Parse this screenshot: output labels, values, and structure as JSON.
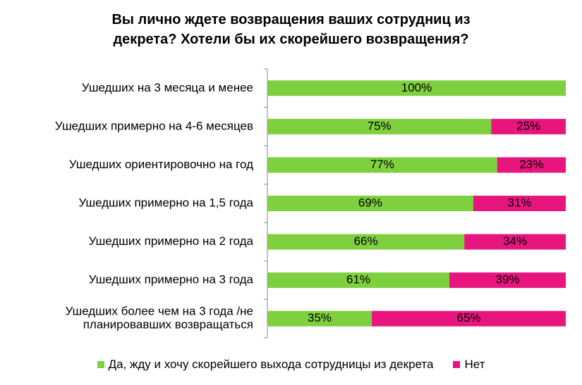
{
  "title": {
    "line1": "Вы лично ждете возвращения ваших сотрудниц из",
    "line2": "декрета? Хотели бы их скорейшего возвращения?"
  },
  "colors": {
    "yes": "#7ED03E",
    "no": "#E8157E"
  },
  "chart_data": {
    "type": "bar",
    "orientation": "horizontal",
    "stacked": true,
    "title": "Вы лично ждете возвращения ваших сотрудниц из декрета? Хотели бы их скорейшего возвращения?",
    "categories": [
      [
        "Ушедших на 3 месяца и менее"
      ],
      [
        "Ушедших примерно  на 4-6 месяцев"
      ],
      [
        "Ушедших ориентировочно на год"
      ],
      [
        "Ушедших примерно  на 1,5 года"
      ],
      [
        "Ушедших примерно  на 2 года"
      ],
      [
        "Ушедших примерно  на 3 года"
      ],
      [
        "Ушедших более чем на 3 года /не",
        "планировавших  возвращаться"
      ]
    ],
    "series": [
      {
        "name": "Да, жду и хочу скорейшего выхода сотрудницы из декрета",
        "key": "yes",
        "values": [
          100,
          75,
          77,
          69,
          66,
          61,
          35
        ],
        "labels": [
          "100%",
          "75%",
          "77%",
          "69%",
          "66%",
          "61%",
          "35%"
        ]
      },
      {
        "name": "Нет",
        "key": "no",
        "values": [
          0,
          25,
          23,
          31,
          34,
          39,
          65
        ],
        "labels": [
          "",
          "25%",
          "23%",
          "31%",
          "34%",
          "39%",
          "65%"
        ]
      }
    ],
    "xlim": [
      0,
      100
    ],
    "grid": false,
    "legend_position": "bottom"
  },
  "legend": {
    "yes": "Да, жду и хочу скорейшего выхода сотрудницы из декрета",
    "no": "Нет"
  }
}
